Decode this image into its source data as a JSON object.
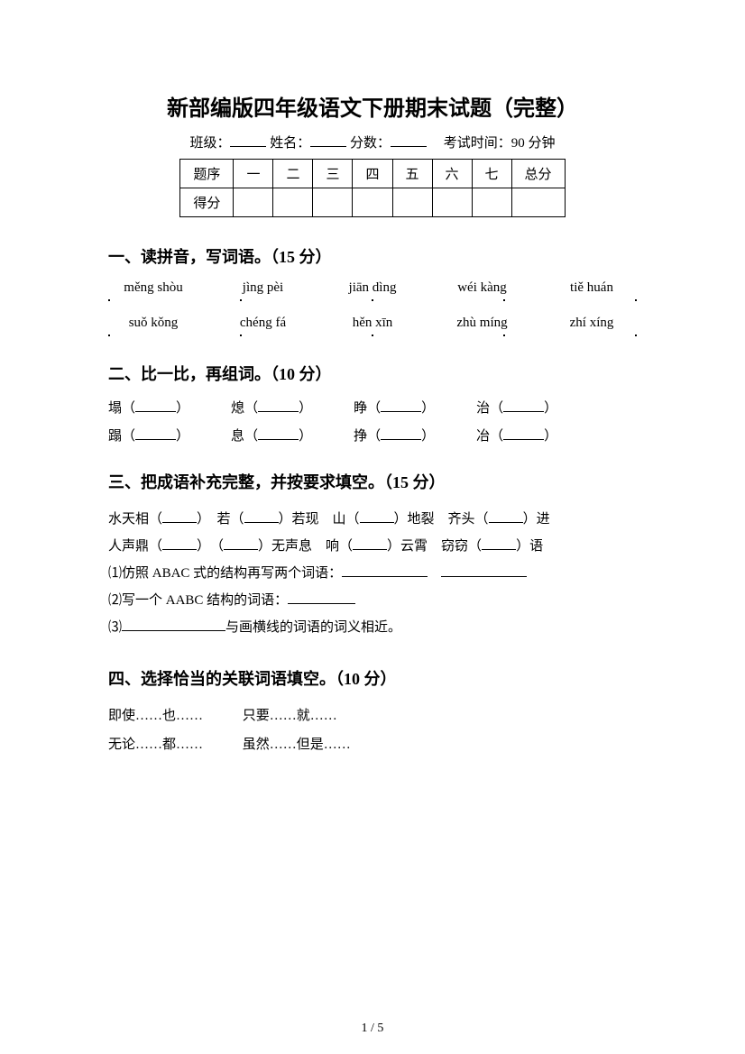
{
  "title": "新部编版四年级语文下册期末试题（完整）",
  "info": {
    "class_label": "班级：",
    "name_label": "姓名：",
    "score_label": "分数：",
    "time_label": "考试时间：90 分钟"
  },
  "score_table": {
    "headers": [
      "题序",
      "一",
      "二",
      "三",
      "四",
      "五",
      "六",
      "七",
      "总分"
    ],
    "row2_first": "得分"
  },
  "section1": {
    "heading": "一、读拼音，写词语。（15 分）",
    "pinyin_row1": [
      "měng shòu",
      "jìng pèi",
      "jiān dìng",
      "wéi kàng",
      "tiě huán"
    ],
    "pinyin_row2": [
      "suǒ kǒng",
      "chéng fá",
      "hěn xīn",
      "zhù míng",
      "zhí xíng"
    ]
  },
  "section2": {
    "heading": "二、比一比，再组词。（10 分）",
    "row1": [
      "塌",
      "熄",
      "睁",
      "治"
    ],
    "row2": [
      "蹋",
      "息",
      "挣",
      "冶"
    ]
  },
  "section3": {
    "heading": "三、把成语补充完整，并按要求填空。（15 分）",
    "line1_parts": [
      "水天相（",
      "）　若（",
      "）若现　山（",
      "）地裂　齐头（",
      "）进"
    ],
    "line2_parts": [
      "人声鼎（",
      "）　（",
      "）无声息　响（",
      "）云霄　窃窃（",
      "）语"
    ],
    "q1": "⑴仿照 ABAC 式的结构再写两个词语：",
    "q2": "⑵写一个 AABC 结构的词语：",
    "q3_suffix": "与画横线的词语的词义相近。",
    "q3_prefix": "⑶"
  },
  "section4": {
    "heading": "四、选择恰当的关联词语填空。（10 分）",
    "row1": [
      "即使……也……",
      "只要……就……"
    ],
    "row2": [
      "无论……都……",
      "虽然……但是……"
    ]
  },
  "page_num": "1 / 5"
}
